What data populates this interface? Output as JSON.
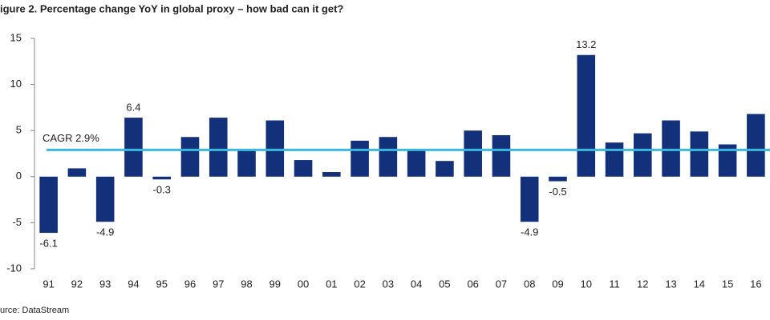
{
  "chart_data": {
    "type": "bar",
    "title": "igure 2. Percentage change YoY in global proxy – how bad can it get?",
    "source": "urce: DataStream",
    "categories": [
      "91",
      "92",
      "93",
      "94",
      "95",
      "96",
      "97",
      "98",
      "99",
      "00",
      "01",
      "02",
      "03",
      "04",
      "05",
      "06",
      "07",
      "08",
      "09",
      "10",
      "11",
      "12",
      "13",
      "14",
      "15",
      "16"
    ],
    "values": [
      -6.1,
      0.9,
      -4.9,
      6.4,
      -0.3,
      4.3,
      6.4,
      2.8,
      6.1,
      1.8,
      0.5,
      3.9,
      4.3,
      2.9,
      1.7,
      5.0,
      4.5,
      -4.9,
      -0.5,
      13.2,
      3.7,
      4.7,
      6.1,
      4.9,
      3.5,
      6.8
    ],
    "value_labels": [
      "-6.1",
      null,
      "-4.9",
      "6.4",
      "-0.3",
      null,
      null,
      null,
      null,
      null,
      null,
      null,
      null,
      null,
      null,
      null,
      null,
      "-4.9",
      "-0.5",
      "13.2",
      null,
      null,
      null,
      null,
      null,
      null
    ],
    "color": "#13307a",
    "ylim": [
      -10,
      15
    ],
    "yticks": [
      -10,
      -5,
      0,
      5,
      10,
      15
    ],
    "grid": false,
    "reference_line": {
      "value": 2.9,
      "label": "CAGR 2.9%",
      "color": "#3bb8e0"
    }
  }
}
